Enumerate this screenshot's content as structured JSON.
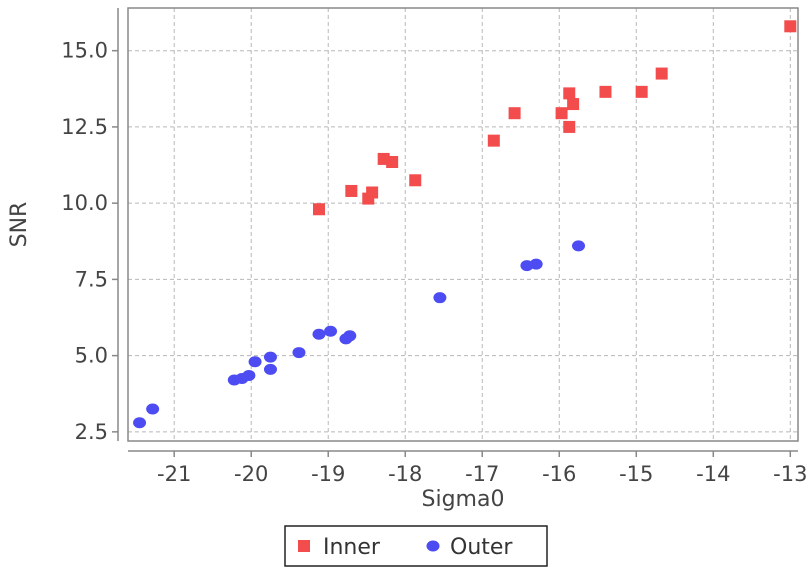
{
  "chart_data": {
    "type": "scatter",
    "title": "",
    "xlabel": "Sigma0",
    "ylabel": "SNR",
    "xlim": [
      -21.6,
      -12.9
    ],
    "ylim": [
      2.2,
      16.4
    ],
    "xticks": [
      -21,
      -20,
      -19,
      -18,
      -17,
      -16,
      -15,
      -14,
      -13
    ],
    "xtick_labels": [
      "-21",
      "-20",
      "-19",
      "-18",
      "-17",
      "-16",
      "-15",
      "-14",
      "-13"
    ],
    "yticks": [
      2.5,
      5.0,
      7.5,
      10.0,
      12.5,
      15.0
    ],
    "ytick_labels": [
      "2.5",
      "5.0",
      "7.5",
      "10.0",
      "12.5",
      "15.0"
    ],
    "grid": true,
    "legend_position": "bottom-center",
    "series": [
      {
        "name": "Inner",
        "color": "#f24c4c",
        "marker": "square",
        "points": [
          [
            -19.12,
            9.8
          ],
          [
            -18.7,
            10.4
          ],
          [
            -18.48,
            10.15
          ],
          [
            -18.43,
            10.35
          ],
          [
            -18.28,
            11.45
          ],
          [
            -18.17,
            11.35
          ],
          [
            -17.87,
            10.75
          ],
          [
            -16.85,
            12.05
          ],
          [
            -16.58,
            12.95
          ],
          [
            -15.97,
            12.95
          ],
          [
            -15.87,
            13.6
          ],
          [
            -15.82,
            13.25
          ],
          [
            -15.87,
            12.5
          ],
          [
            -15.4,
            13.65
          ],
          [
            -14.93,
            13.65
          ],
          [
            -14.67,
            14.25
          ],
          [
            -13.0,
            15.8
          ]
        ]
      },
      {
        "name": "Outer",
        "color": "#4c4cf2",
        "marker": "circle",
        "points": [
          [
            -21.45,
            2.8
          ],
          [
            -21.28,
            3.25
          ],
          [
            -20.22,
            4.2
          ],
          [
            -20.12,
            4.25
          ],
          [
            -20.03,
            4.35
          ],
          [
            -19.95,
            4.8
          ],
          [
            -19.75,
            4.95
          ],
          [
            -19.75,
            4.55
          ],
          [
            -19.38,
            5.1
          ],
          [
            -19.12,
            5.7
          ],
          [
            -18.97,
            5.8
          ],
          [
            -18.77,
            5.55
          ],
          [
            -18.72,
            5.65
          ],
          [
            -17.55,
            6.9
          ],
          [
            -16.42,
            7.95
          ],
          [
            -16.3,
            8.0
          ],
          [
            -15.75,
            8.6
          ]
        ]
      }
    ]
  }
}
